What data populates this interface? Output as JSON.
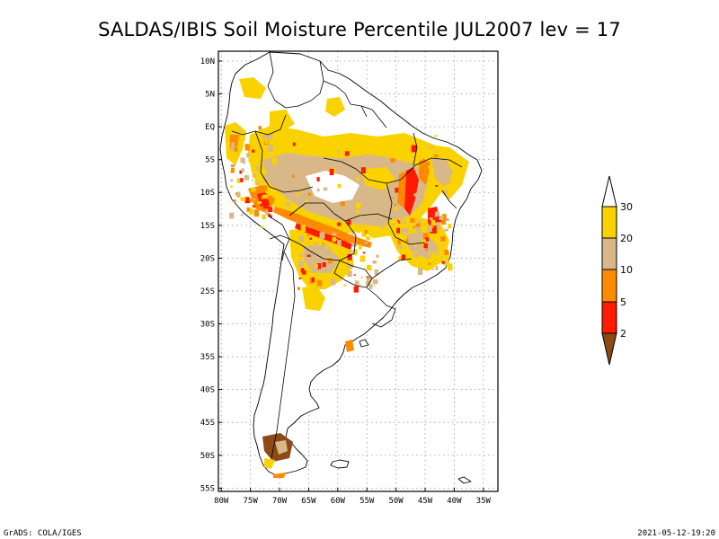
{
  "title": "SALDAS/IBIS Soil Moisture Percentile JUL2007 lev = 17",
  "map": {
    "lon_labels": [
      "80W",
      "75W",
      "70W",
      "65W",
      "60W",
      "55W",
      "50W",
      "45W",
      "40W",
      "35W"
    ],
    "lat_labels": [
      "10N",
      "5N",
      "EQ",
      "5S",
      "10S",
      "15S",
      "20S",
      "25S",
      "30S",
      "35S",
      "40S",
      "45S",
      "50S",
      "55S"
    ],
    "lon_range": [
      -80.5,
      -32.5
    ],
    "lat_range": [
      -55.5,
      11.5
    ],
    "grid": true
  },
  "legend": {
    "labels": [
      "30",
      "20",
      "10",
      "5",
      "2"
    ],
    "colors": {
      "above_30": "#ffffff",
      "20_30": "#fad200",
      "10_20": "#d8b888",
      "5_10": "#ff8a00",
      "2_5": "#ff1a00",
      "below_2": "#8b4a16"
    }
  },
  "footer": {
    "left": "GrADS: COLA/IGES",
    "right": "2021-05-12-19:20"
  }
}
